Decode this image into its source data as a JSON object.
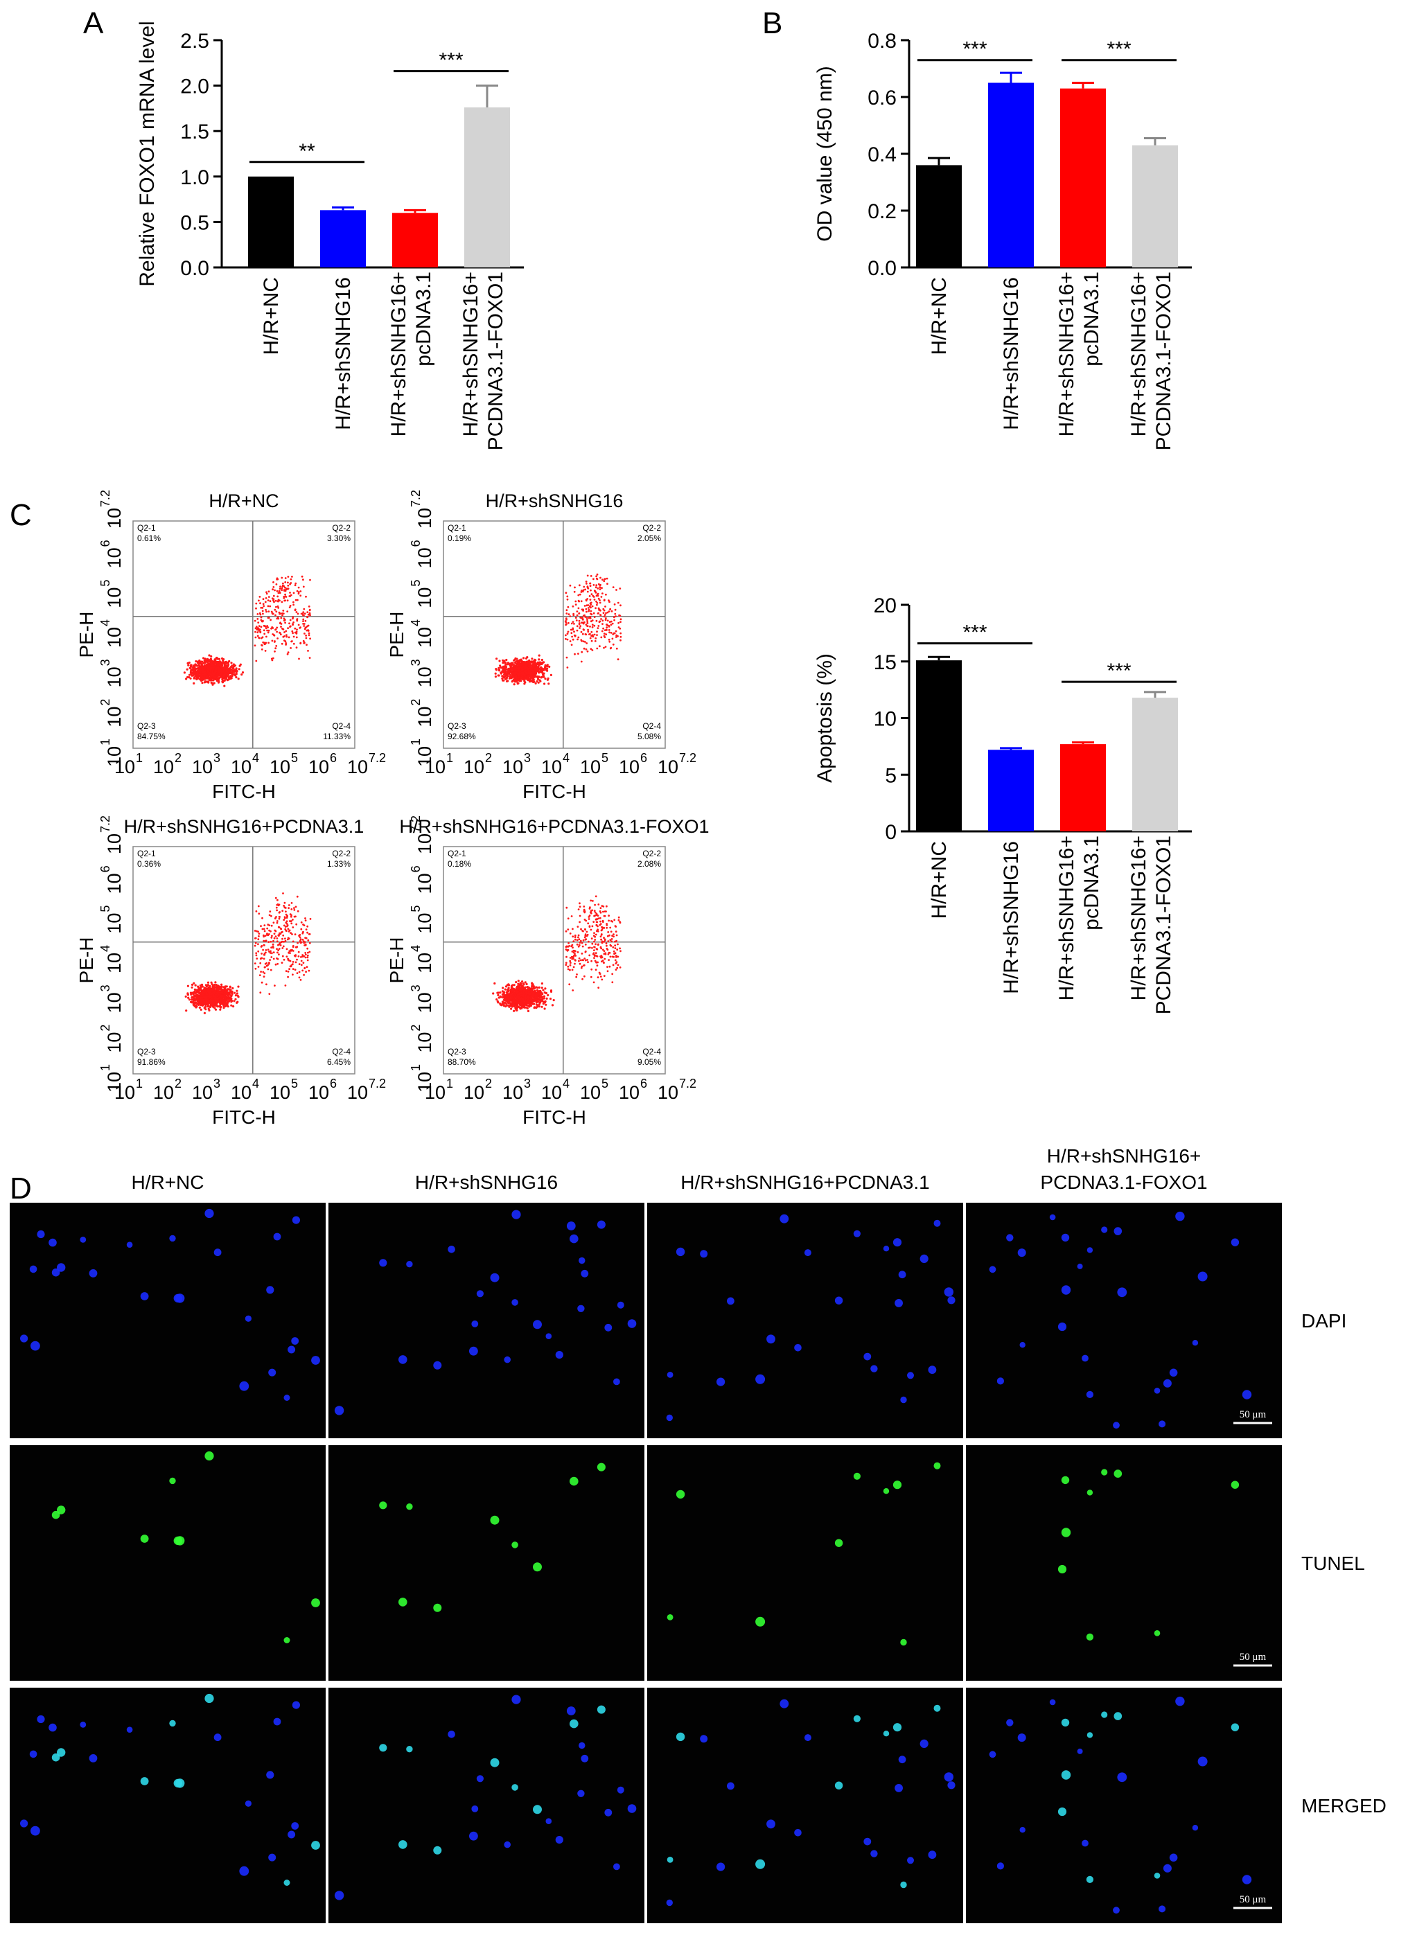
{
  "panel_letters": [
    "A",
    "B",
    "C",
    "D"
  ],
  "colors": {
    "black": "#000000",
    "blue": "#0000ff",
    "red": "#ff0000",
    "gray": "#d3d3d3",
    "dapi": "#1a2bff",
    "tunel": "#33ff33",
    "merged": "#2fd8e8",
    "flow_dot": "#ff1a1a"
  },
  "bar_categories": [
    "H/R+NC",
    "H/R+shSNHG16",
    "H/R+shSNHG16+ pcDNA3.1",
    "H/R+shSNHG16+ PCDNA3.1-FOXO1"
  ],
  "chart_data": [
    {
      "panel": "A",
      "type": "bar",
      "ylabel": "Relative FOXO1 mRNA level",
      "ylim": [
        0,
        2.5
      ],
      "yticks": [
        "0.0",
        "0.5",
        "1.0",
        "1.5",
        "2.0",
        "2.5"
      ],
      "ytick_values": [
        0,
        0.5,
        1.0,
        1.5,
        2.0,
        2.5
      ],
      "categories": [
        "H/R+NC",
        "H/R+shSNHG16",
        "H/R+shSNHG16+ pcDNA3.1",
        "H/R+shSNHG16+ PCDNA3.1-FOXO1"
      ],
      "values": [
        1.0,
        0.63,
        0.6,
        1.76
      ],
      "errors": [
        0.0,
        0.03,
        0.03,
        0.24
      ],
      "significance": [
        {
          "from": 0,
          "to": 1,
          "label": "**",
          "y": 1.16
        },
        {
          "from": 2,
          "to": 3,
          "label": "***",
          "y": 2.16
        }
      ]
    },
    {
      "panel": "B",
      "type": "bar",
      "ylabel": "OD value (450 nm)",
      "ylim": [
        0,
        0.8
      ],
      "yticks": [
        "0.0",
        "0.2",
        "0.4",
        "0.6",
        "0.8"
      ],
      "ytick_values": [
        0,
        0.2,
        0.4,
        0.6,
        0.8
      ],
      "categories": [
        "H/R+NC",
        "H/R+shSNHG16",
        "H/R+shSNHG16+ pcDNA3.1",
        "H/R+shSNHG16+ PCDNA3.1-FOXO1"
      ],
      "values": [
        0.36,
        0.65,
        0.63,
        0.43
      ],
      "errors": [
        0.025,
        0.035,
        0.02,
        0.025
      ],
      "significance": [
        {
          "from": 0,
          "to": 1,
          "label": "***",
          "y": 0.73
        },
        {
          "from": 2,
          "to": 3,
          "label": "***",
          "y": 0.73
        }
      ]
    },
    {
      "panel": "C",
      "type": "bar",
      "ylabel": "Apoptosis (%)",
      "ylim": [
        0,
        20
      ],
      "yticks": [
        "0",
        "5",
        "10",
        "15",
        "20"
      ],
      "ytick_values": [
        0,
        5,
        10,
        15,
        20
      ],
      "categories": [
        "H/R+NC",
        "H/R+shSNHG16",
        "H/R+shSNHG16+ pcDNA3.1",
        "H/R+shSNHG16+ PCDNA3.1-FOXO1"
      ],
      "values": [
        15.1,
        7.2,
        7.7,
        11.8
      ],
      "errors": [
        0.3,
        0.15,
        0.15,
        0.5
      ],
      "significance": [
        {
          "from": 0,
          "to": 1,
          "label": "***",
          "y": 16.6
        },
        {
          "from": 2,
          "to": 3,
          "label": "***",
          "y": 13.2
        }
      ]
    },
    {
      "panel": "C",
      "type": "scatter",
      "title": "H/R+NC",
      "xlabel": "FITC-H",
      "ylabel": "PE-H",
      "quadrants": [
        {
          "name": "Q2-1",
          "percent": "0.61%"
        },
        {
          "name": "Q2-2",
          "percent": "3.30%"
        },
        {
          "name": "Q2-3",
          "percent": "84.75%"
        },
        {
          "name": "Q2-4",
          "percent": "11.33%"
        }
      ]
    },
    {
      "panel": "C",
      "type": "scatter",
      "title": "H/R+shSNHG16",
      "xlabel": "FITC-H",
      "ylabel": "PE-H",
      "quadrants": [
        {
          "name": "Q2-1",
          "percent": "0.19%"
        },
        {
          "name": "Q2-2",
          "percent": "2.05%"
        },
        {
          "name": "Q2-3",
          "percent": "92.68%"
        },
        {
          "name": "Q2-4",
          "percent": "5.08%"
        }
      ]
    },
    {
      "panel": "C",
      "type": "scatter",
      "title": "H/R+shSNHG16+PCDNA3.1",
      "xlabel": "FITC-H",
      "ylabel": "PE-H",
      "quadrants": [
        {
          "name": "Q2-1",
          "percent": "0.36%"
        },
        {
          "name": "Q2-2",
          "percent": "1.33%"
        },
        {
          "name": "Q2-3",
          "percent": "91.86%"
        },
        {
          "name": "Q2-4",
          "percent": "6.45%"
        }
      ]
    },
    {
      "panel": "C",
      "type": "scatter",
      "title": "H/R+shSNHG16+PCDNA3.1-FOXO1",
      "xlabel": "FITC-H",
      "ylabel": "PE-H",
      "quadrants": [
        {
          "name": "Q2-1",
          "percent": "0.18%"
        },
        {
          "name": "Q2-2",
          "percent": "2.08%"
        },
        {
          "name": "Q2-3",
          "percent": "88.70%"
        },
        {
          "name": "Q2-4",
          "percent": "9.05%"
        }
      ]
    }
  ],
  "flow_axis": {
    "xticks": [
      "10",
      "10",
      "10",
      "10",
      "10",
      "10",
      "10"
    ],
    "xexp": [
      "1",
      "2",
      "3",
      "4",
      "5",
      "6",
      "7.2"
    ],
    "yticks": [
      "10",
      "10",
      "10",
      "10",
      "10",
      "10",
      "10"
    ],
    "yexp": [
      "1",
      "2",
      "3",
      "4",
      "5",
      "6",
      "7.2"
    ],
    "flow_note": "log10 fluorescence, quadrant gate at 10^4.4 (x) and 10^4.0 (y)"
  },
  "panel_d": {
    "column_titles": [
      "H/R+NC",
      "H/R+shSNHG16",
      "H/R+shSNHG16+PCDNA3.1",
      "H/R+shSNHG16+ PCDNA3.1-FOXO1"
    ],
    "row_labels": [
      "DAPI",
      "TUNEL",
      "MERGED"
    ],
    "scale_bar": "50 μm"
  }
}
